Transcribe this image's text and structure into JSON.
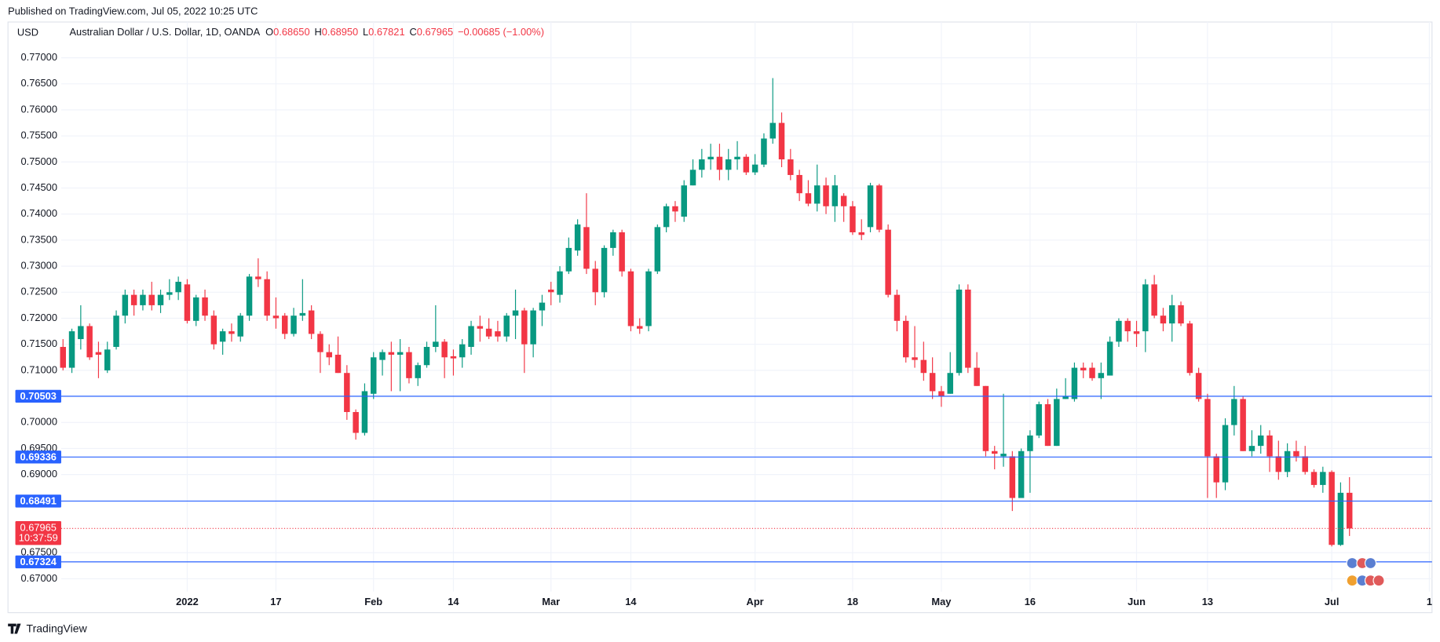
{
  "chart_data": {
    "type": "candlestick",
    "published": "Published on TradingView.com, Jul 05, 2022 10:25 UTC",
    "currency": "USD",
    "title": "Australian Dollar / U.S. Dollar, 1D, OANDA",
    "legend_values": [
      {
        "key": "O",
        "label": "0.68650"
      },
      {
        "key": "H",
        "label": "0.68950"
      },
      {
        "key": "L",
        "label": "0.67821"
      },
      {
        "key": "C",
        "label": "0.67965"
      }
    ],
    "change": "−0.00685 (−1.00%)",
    "brand": "TradingView",
    "up_color": "#089981",
    "down_color": "#f23645",
    "line_color": "#2962ff",
    "grid": true,
    "open": [
      0.7145,
      0.7105,
      0.716,
      0.7185,
      0.7135,
      0.71,
      0.7145,
      0.7205,
      0.7245,
      0.7225,
      0.7245,
      0.7225,
      0.7245,
      0.725,
      0.7265,
      0.7195,
      0.724,
      0.7205,
      0.7155,
      0.7175,
      0.7165,
      0.7205,
      0.728,
      0.7275,
      0.7205,
      0.7205,
      0.717,
      0.7205,
      0.7215,
      0.717,
      0.7135,
      0.713,
      0.7095,
      0.702,
      0.698,
      0.7055,
      0.712,
      0.7135,
      0.713,
      0.7135,
      0.7085,
      0.711,
      0.7145,
      0.7155,
      0.7127,
      0.7125,
      0.7145,
      0.7185,
      0.718,
      0.7175,
      0.7165,
      0.7205,
      0.7215,
      0.715,
      0.7215,
      0.7255,
      0.7245,
      0.729,
      0.733,
      0.7375,
      0.7295,
      0.725,
      0.7335,
      0.7365,
      0.729,
      0.7185,
      0.7185,
      0.729,
      0.7375,
      0.7415,
      0.7395,
      0.7455,
      0.7485,
      0.7505,
      0.751,
      0.7485,
      0.7505,
      0.751,
      0.748,
      0.7495,
      0.7545,
      0.7575,
      0.7505,
      0.7475,
      0.744,
      0.742,
      0.7455,
      0.7415,
      0.7435,
      0.7415,
      0.7365,
      0.7375,
      0.7455,
      0.737,
      0.7245,
      0.7195,
      0.7125,
      0.712,
      0.7095,
      0.706,
      0.7055,
      0.7095,
      0.7255,
      0.7105,
      0.707,
      0.6945,
      0.6935,
      0.6935,
      0.6855,
      0.6945,
      0.6975,
      0.7035,
      0.6955,
      0.7045,
      0.7045,
      0.7105,
      0.7105,
      0.7085,
      0.709,
      0.7155,
      0.7195,
      0.7175,
      0.7175,
      0.7265,
      0.7205,
      0.719,
      0.7225,
      0.719,
      0.7095,
      0.7045,
      0.6935,
      0.6885,
      0.6995,
      0.7045,
      0.6945,
      0.6955,
      0.6975,
      0.6935,
      0.6905,
      0.6945,
      0.6935,
      0.6905,
      0.688,
      0.6905,
      0.6765,
      0.6865
    ],
    "high": [
      0.716,
      0.718,
      0.7225,
      0.719,
      0.7155,
      0.7155,
      0.7215,
      0.7255,
      0.7255,
      0.7255,
      0.727,
      0.7255,
      0.7275,
      0.728,
      0.7275,
      0.7245,
      0.7255,
      0.7215,
      0.718,
      0.719,
      0.721,
      0.7285,
      0.7315,
      0.729,
      0.724,
      0.721,
      0.722,
      0.7275,
      0.7225,
      0.7175,
      0.715,
      0.7165,
      0.711,
      0.7025,
      0.7075,
      0.7135,
      0.714,
      0.7155,
      0.716,
      0.7145,
      0.7115,
      0.7155,
      0.7225,
      0.716,
      0.714,
      0.716,
      0.7195,
      0.7205,
      0.72,
      0.7195,
      0.721,
      0.7255,
      0.722,
      0.722,
      0.7245,
      0.727,
      0.73,
      0.7355,
      0.739,
      0.744,
      0.731,
      0.734,
      0.737,
      0.737,
      0.7295,
      0.72,
      0.7295,
      0.738,
      0.742,
      0.7425,
      0.7465,
      0.7505,
      0.7525,
      0.7535,
      0.7535,
      0.7525,
      0.754,
      0.7515,
      0.7515,
      0.7555,
      0.7661,
      0.7595,
      0.7525,
      0.7485,
      0.7465,
      0.7495,
      0.747,
      0.7475,
      0.744,
      0.7425,
      0.739,
      0.746,
      0.7458,
      0.738,
      0.7255,
      0.7205,
      0.7185,
      0.7155,
      0.7125,
      0.707,
      0.7135,
      0.7265,
      0.7265,
      0.7135,
      0.707,
      0.6955,
      0.7055,
      0.6945,
      0.695,
      0.6985,
      0.704,
      0.7045,
      0.7065,
      0.7085,
      0.7115,
      0.7115,
      0.7115,
      0.7115,
      0.7165,
      0.72,
      0.72,
      0.7195,
      0.7275,
      0.7283,
      0.722,
      0.7245,
      0.7232,
      0.7195,
      0.7105,
      0.7055,
      0.694,
      0.7008,
      0.707,
      0.705,
      0.6985,
      0.6995,
      0.6985,
      0.6965,
      0.696,
      0.6965,
      0.6955,
      0.691,
      0.6915,
      0.6908,
      0.6885,
      0.6895
    ],
    "low": [
      0.71,
      0.7095,
      0.714,
      0.712,
      0.7085,
      0.7095,
      0.714,
      0.719,
      0.7205,
      0.7215,
      0.7215,
      0.721,
      0.7235,
      0.7235,
      0.719,
      0.7185,
      0.7195,
      0.714,
      0.713,
      0.7155,
      0.7155,
      0.7195,
      0.726,
      0.7195,
      0.718,
      0.716,
      0.7165,
      0.7195,
      0.716,
      0.7095,
      0.711,
      0.7095,
      0.7005,
      0.6967,
      0.6975,
      0.7045,
      0.709,
      0.706,
      0.706,
      0.7075,
      0.707,
      0.7105,
      0.7135,
      0.7085,
      0.709,
      0.7105,
      0.713,
      0.7155,
      0.716,
      0.7155,
      0.7155,
      0.716,
      0.7095,
      0.7125,
      0.7185,
      0.7225,
      0.723,
      0.7285,
      0.732,
      0.7285,
      0.7225,
      0.724,
      0.732,
      0.728,
      0.7175,
      0.717,
      0.7175,
      0.7285,
      0.7365,
      0.7385,
      0.7385,
      0.7455,
      0.747,
      0.7485,
      0.7465,
      0.7465,
      0.7485,
      0.7475,
      0.7475,
      0.749,
      0.7535,
      0.749,
      0.7465,
      0.7425,
      0.7415,
      0.7405,
      0.74,
      0.7385,
      0.7385,
      0.736,
      0.735,
      0.7365,
      0.7365,
      0.724,
      0.7175,
      0.7115,
      0.7105,
      0.708,
      0.7045,
      0.703,
      0.7055,
      0.709,
      0.7095,
      0.707,
      0.6935,
      0.691,
      0.6915,
      0.683,
      0.6855,
      0.6865,
      0.697,
      0.6955,
      0.6955,
      0.7045,
      0.704,
      0.7085,
      0.708,
      0.7045,
      0.709,
      0.7145,
      0.7155,
      0.7145,
      0.7135,
      0.72,
      0.7175,
      0.7155,
      0.7185,
      0.709,
      0.704,
      0.6855,
      0.6855,
      0.687,
      0.6975,
      0.6945,
      0.6935,
      0.694,
      0.6905,
      0.689,
      0.6895,
      0.6925,
      0.69,
      0.6875,
      0.6865,
      0.6762,
      0.6763,
      0.67821
    ],
    "close": [
      0.7105,
      0.7175,
      0.7185,
      0.7125,
      0.713,
      0.714,
      0.7205,
      0.7245,
      0.7225,
      0.7245,
      0.7225,
      0.7245,
      0.725,
      0.727,
      0.7195,
      0.724,
      0.7205,
      0.715,
      0.7175,
      0.717,
      0.7205,
      0.728,
      0.7275,
      0.7205,
      0.72,
      0.717,
      0.7205,
      0.721,
      0.717,
      0.7135,
      0.7125,
      0.7095,
      0.702,
      0.698,
      0.706,
      0.7125,
      0.7135,
      0.713,
      0.7135,
      0.7085,
      0.711,
      0.7145,
      0.7155,
      0.7125,
      0.7123,
      0.715,
      0.7185,
      0.718,
      0.7165,
      0.7165,
      0.7205,
      0.7215,
      0.715,
      0.7215,
      0.723,
      0.725,
      0.729,
      0.7335,
      0.738,
      0.7295,
      0.725,
      0.7335,
      0.7365,
      0.729,
      0.7185,
      0.718,
      0.729,
      0.7375,
      0.7415,
      0.7405,
      0.7455,
      0.7485,
      0.7505,
      0.751,
      0.7485,
      0.7505,
      0.751,
      0.748,
      0.7495,
      0.7545,
      0.7575,
      0.7505,
      0.7475,
      0.744,
      0.742,
      0.7455,
      0.7415,
      0.7455,
      0.7415,
      0.7365,
      0.736,
      0.7455,
      0.737,
      0.7245,
      0.7195,
      0.7125,
      0.712,
      0.7095,
      0.706,
      0.705,
      0.7095,
      0.7255,
      0.7105,
      0.707,
      0.6945,
      0.694,
      0.694,
      0.6855,
      0.6945,
      0.6975,
      0.7035,
      0.6955,
      0.7045,
      0.705,
      0.7105,
      0.71,
      0.7085,
      0.7095,
      0.7155,
      0.7195,
      0.7175,
      0.717,
      0.7265,
      0.7205,
      0.719,
      0.7225,
      0.719,
      0.7095,
      0.7045,
      0.6935,
      0.6885,
      0.6995,
      0.7045,
      0.6945,
      0.6955,
      0.6975,
      0.6935,
      0.6905,
      0.6945,
      0.6935,
      0.6905,
      0.688,
      0.6905,
      0.6765,
      0.6865,
      0.67965
    ],
    "xlim": [
      -6.2,
      154.3
    ],
    "xticks": [
      {
        "value": 14,
        "label": "2022"
      },
      {
        "value": 24,
        "label": "17"
      },
      {
        "value": 35,
        "label": "Feb"
      },
      {
        "value": 44,
        "label": "14"
      },
      {
        "value": 55,
        "label": "Mar"
      },
      {
        "value": 64,
        "label": "14"
      },
      {
        "value": 78,
        "label": "Apr"
      },
      {
        "value": 89,
        "label": "18"
      },
      {
        "value": 99,
        "label": "May"
      },
      {
        "value": 109,
        "label": "16"
      },
      {
        "value": 121,
        "label": "Jun"
      },
      {
        "value": 129,
        "label": "13"
      },
      {
        "value": 143,
        "label": "Jul"
      },
      {
        "value": 154,
        "label": "1"
      }
    ],
    "ylim": [
      0.66754,
      0.77616
    ],
    "yticks": [
      {
        "value": 0.67,
        "label": "0.67000"
      },
      {
        "value": 0.675,
        "label": "0.67500"
      },
      {
        "value": 0.69,
        "label": "0.69000"
      },
      {
        "value": 0.695,
        "label": "0.69500"
      },
      {
        "value": 0.7,
        "label": "0.70000"
      },
      {
        "value": 0.71,
        "label": "0.71000"
      },
      {
        "value": 0.715,
        "label": "0.71500"
      },
      {
        "value": 0.72,
        "label": "0.72000"
      },
      {
        "value": 0.725,
        "label": "0.72500"
      },
      {
        "value": 0.73,
        "label": "0.73000"
      },
      {
        "value": 0.735,
        "label": "0.73500"
      },
      {
        "value": 0.74,
        "label": "0.74000"
      },
      {
        "value": 0.745,
        "label": "0.74500"
      },
      {
        "value": 0.75,
        "label": "0.75000"
      },
      {
        "value": 0.755,
        "label": "0.75500"
      },
      {
        "value": 0.76,
        "label": "0.76000"
      },
      {
        "value": 0.765,
        "label": "0.76500"
      },
      {
        "value": 0.77,
        "label": "0.77000"
      }
    ],
    "hlines": [
      {
        "value": 0.70503,
        "label": "0.70503"
      },
      {
        "value": 0.69336,
        "label": "0.69336"
      },
      {
        "value": 0.68491,
        "label": "0.68491"
      },
      {
        "value": 0.67324,
        "label": "0.67324"
      }
    ],
    "last_price": {
      "value": 0.67965,
      "label": "0.67965",
      "countdown": "10:37:59"
    }
  }
}
